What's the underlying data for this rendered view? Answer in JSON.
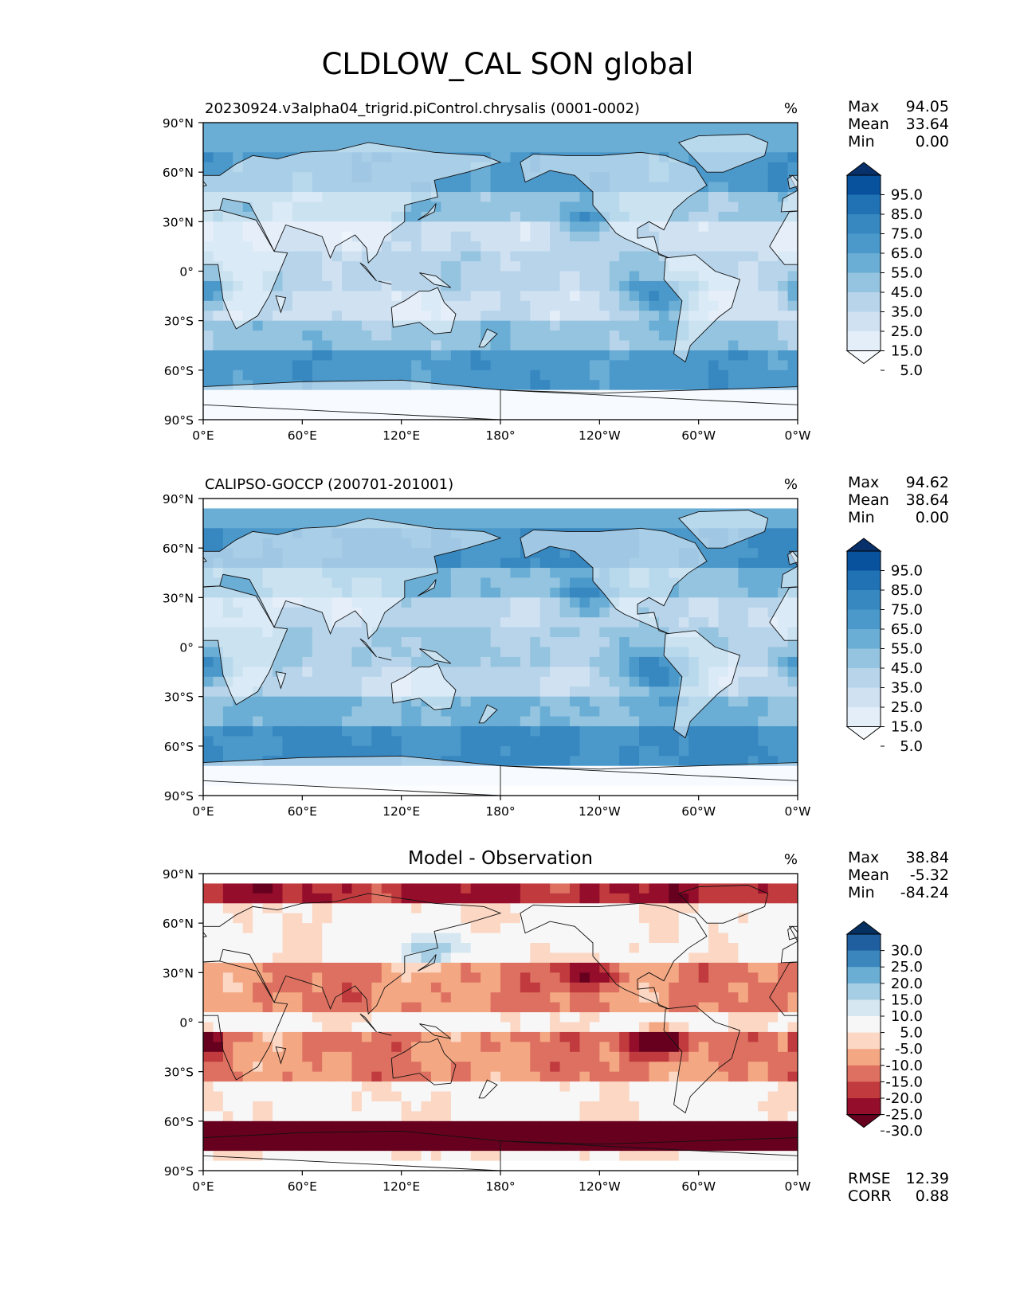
{
  "figure": {
    "title": "CLDLOW_CAL SON global"
  },
  "chart_data": [
    {
      "type": "heatmap",
      "title": "20230924.v3alpha04_trigrid.piControl.chrysalis (0001-0002)",
      "units": "%",
      "stats": [
        {
          "label": "Max",
          "value": "94.05"
        },
        {
          "label": "Mean",
          "value": "33.64"
        },
        {
          "label": "Min",
          "value": "0.00"
        }
      ],
      "colorbar": {
        "labels": [
          "95.0",
          "85.0",
          "75.0",
          "65.0",
          "55.0",
          "45.0",
          "35.0",
          "25.0",
          "15.0",
          "5.0"
        ],
        "colors": [
          "#08306b",
          "#08519c",
          "#2171b5",
          "#3787c0",
          "#4b98ca",
          "#6aaed6",
          "#94c4df",
          "#b7d4ea",
          "#d0e1f2",
          "#e3eef9",
          "#f7fbff"
        ],
        "extend": "both"
      },
      "xticks": [
        "0°E",
        "60°E",
        "120°E",
        "180°",
        "120°W",
        "60°W",
        "0°W"
      ],
      "yticks": [
        "90°N",
        "60°N",
        "30°N",
        "0°",
        "30°S",
        "60°S",
        "90°S"
      ]
    },
    {
      "type": "heatmap",
      "title": "CALIPSO-GOCCP (200701-201001)",
      "units": "%",
      "stats": [
        {
          "label": "Max",
          "value": "94.62"
        },
        {
          "label": "Mean",
          "value": "38.64"
        },
        {
          "label": "Min",
          "value": "0.00"
        }
      ],
      "colorbar": {
        "labels": [
          "95.0",
          "85.0",
          "75.0",
          "65.0",
          "55.0",
          "45.0",
          "35.0",
          "25.0",
          "15.0",
          "5.0"
        ],
        "colors": [
          "#08306b",
          "#08519c",
          "#2171b5",
          "#3787c0",
          "#4b98ca",
          "#6aaed6",
          "#94c4df",
          "#b7d4ea",
          "#d0e1f2",
          "#e3eef9",
          "#f7fbff"
        ],
        "extend": "both"
      },
      "xticks": [
        "0°E",
        "60°E",
        "120°E",
        "180°",
        "120°W",
        "60°W",
        "0°W"
      ],
      "yticks": [
        "90°N",
        "60°N",
        "30°N",
        "0°",
        "30°S",
        "60°S",
        "90°S"
      ]
    },
    {
      "type": "heatmap",
      "title": "Model - Observation",
      "units": "%",
      "stats": [
        {
          "label": "Max",
          "value": "38.84"
        },
        {
          "label": "Mean",
          "value": "-5.32"
        },
        {
          "label": "Min",
          "value": "-84.24"
        }
      ],
      "colorbar": {
        "labels": [
          "30.0",
          "25.0",
          "20.0",
          "15.0",
          "10.0",
          "5.0",
          "-5.0",
          "-10.0",
          "-15.0",
          "-20.0",
          "-25.0",
          "-30.0"
        ],
        "colors": [
          "#053061",
          "#1f5fa0",
          "#3a86bd",
          "#6aaed3",
          "#a5cde3",
          "#d6e7f1",
          "#f7f7f7",
          "#fbd7c4",
          "#f4a783",
          "#dd7060",
          "#c03a3e",
          "#940d2a",
          "#67001f"
        ],
        "extend": "both"
      },
      "xticks": [
        "0°E",
        "60°E",
        "120°E",
        "180°",
        "120°W",
        "60°W",
        "0°W"
      ],
      "yticks": [
        "90°N",
        "60°N",
        "30°N",
        "0°",
        "30°S",
        "60°S",
        "90°S"
      ],
      "metrics": [
        {
          "label": "RMSE",
          "value": "12.39"
        },
        {
          "label": "CORR",
          "value": "0.88"
        }
      ]
    }
  ]
}
